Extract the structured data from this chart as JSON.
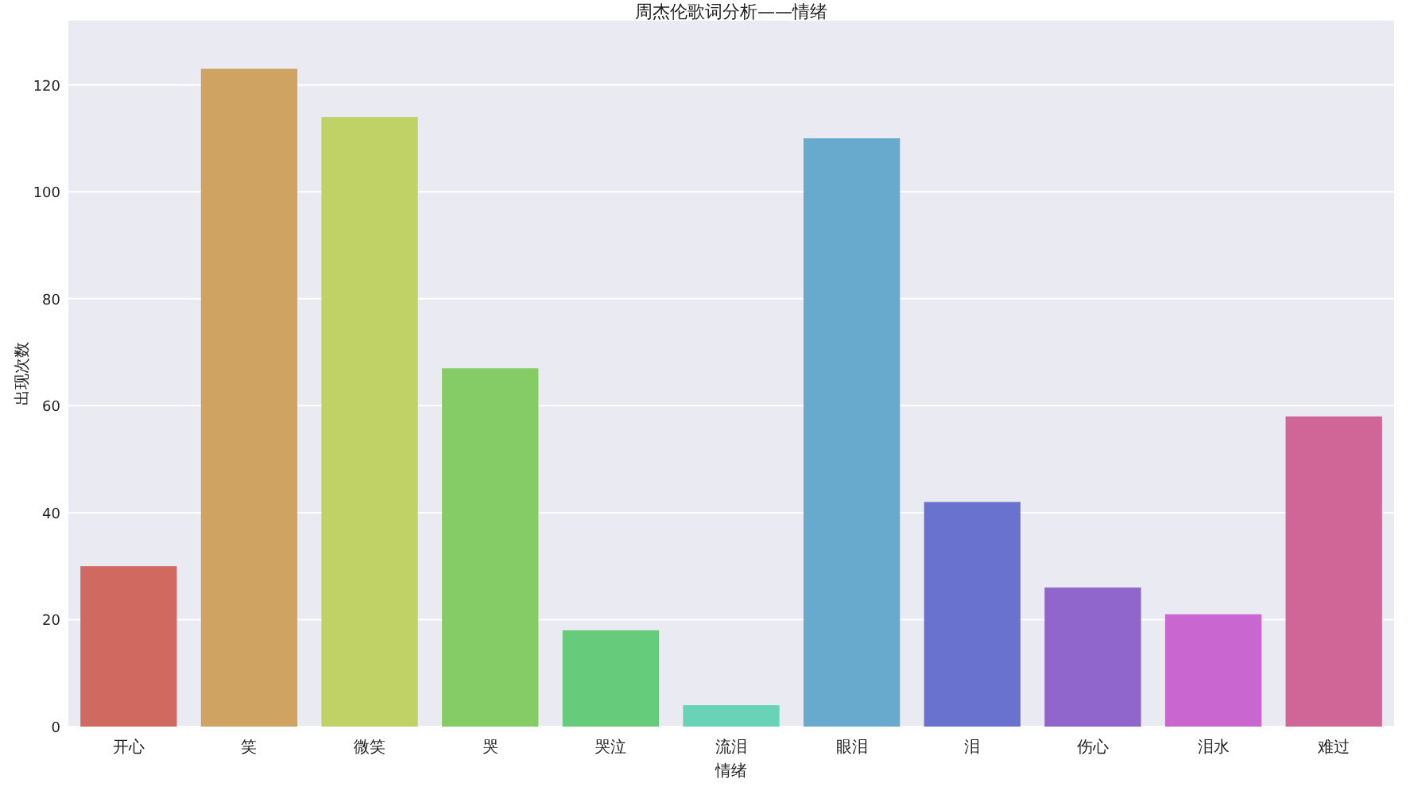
{
  "chart_data": {
    "type": "bar",
    "title": "周杰伦歌词分析——情绪",
    "xlabel": "情绪",
    "ylabel": "出现次数",
    "categories": [
      "开心",
      "笑",
      "微笑",
      "哭",
      "哭泣",
      "流泪",
      "眼泪",
      "泪",
      "伤心",
      "泪水",
      "难过"
    ],
    "values": [
      30,
      123,
      114,
      67,
      18,
      4,
      110,
      42,
      26,
      21,
      58
    ],
    "colors": [
      "#d0695f",
      "#cfa462",
      "#c0d265",
      "#86cc66",
      "#66cc7c",
      "#69d3b8",
      "#68aacd",
      "#6a72cf",
      "#9066cc",
      "#c966cf",
      "#cf6697"
    ],
    "ylim": [
      0,
      132
    ],
    "yticks": [
      0,
      20,
      40,
      60,
      80,
      100,
      120
    ],
    "grid": "y"
  }
}
